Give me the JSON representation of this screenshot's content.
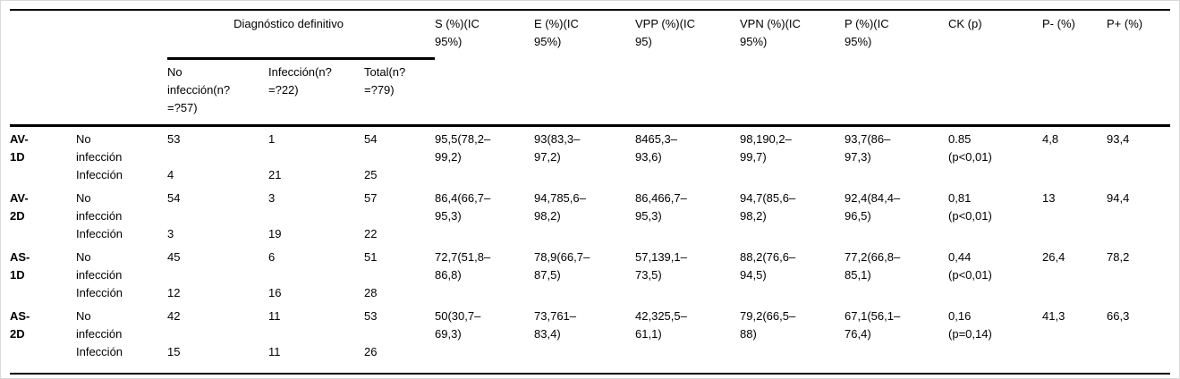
{
  "table": {
    "group_header": "Diagnóstico definitivo",
    "sub_columns": [
      "No infección(n? =?57)",
      "Infección(n? =?22)",
      "Total(n? =?79)"
    ],
    "stat_columns": [
      "S (%)(IC 95%)",
      "E (%)(IC 95%)",
      "VPP (%)(IC 95)",
      "VPN (%)(IC 95%)",
      "P (%)(IC 95%)",
      "CK (p)",
      "P- (%)",
      "P+ (%)"
    ],
    "row_groups": [
      {
        "test": "AV-1D",
        "rows": [
          {
            "label": "No infección",
            "no_infeccion": "53",
            "infeccion": "1",
            "total": "54"
          },
          {
            "label": "Infección",
            "no_infeccion": "4",
            "infeccion": "21",
            "total": "25"
          }
        ],
        "stats": {
          "s": "95,5(78,2–99,2)",
          "e": "93(83,3–97,2)",
          "vpp": "8465,3–93,6)",
          "vpn": "98,190,2–99,7)",
          "p": "93,7(86–97,3)",
          "ck": "0.85\n(p<0,01)",
          "p_minus": "4,8",
          "p_plus": "93,4"
        }
      },
      {
        "test": "AV-2D",
        "rows": [
          {
            "label": "No infección",
            "no_infeccion": "54",
            "infeccion": "3",
            "total": "57"
          },
          {
            "label": "Infección",
            "no_infeccion": "3",
            "infeccion": "19",
            "total": "22"
          }
        ],
        "stats": {
          "s": "86,4(66,7–95,3)",
          "e": "94,785,6–98,2)",
          "vpp": "86,466,7–95,3)",
          "vpn": "94,7(85,6–98,2)",
          "p": "92,4(84,4–96,5)",
          "ck": "0,81\n(p<0,01)",
          "p_minus": "13",
          "p_plus": "94,4"
        }
      },
      {
        "test": "AS-1D",
        "rows": [
          {
            "label": "No infección",
            "no_infeccion": "45",
            "infeccion": "6",
            "total": "51"
          },
          {
            "label": "Infección",
            "no_infeccion": "12",
            "infeccion": "16",
            "total": "28"
          }
        ],
        "stats": {
          "s": "72,7(51,8–86,8)",
          "e": "78,9(66,7–87,5)",
          "vpp": "57,139,1–73,5)",
          "vpn": "88,2(76,6–94,5)",
          "p": "77,2(66,8–85,1)",
          "ck": "0,44\n(p<0,01)",
          "p_minus": "26,4",
          "p_plus": "78,2"
        }
      },
      {
        "test": "AS-2D",
        "rows": [
          {
            "label": "No infección",
            "no_infeccion": "42",
            "infeccion": "11",
            "total": "53"
          },
          {
            "label": "Infección",
            "no_infeccion": "15",
            "infeccion": "11",
            "total": "26"
          }
        ],
        "stats": {
          "s": "50(30,7–69,3)",
          "e": "73,761–83,4)",
          "vpp": "42,325,5–61,1)",
          "vpn": "79,2(66,5–88)",
          "p": "67,1(56,1–76,4)",
          "ck": "0,16\n(p=0,14)",
          "p_minus": "41,3",
          "p_plus": "66,3"
        }
      }
    ]
  }
}
